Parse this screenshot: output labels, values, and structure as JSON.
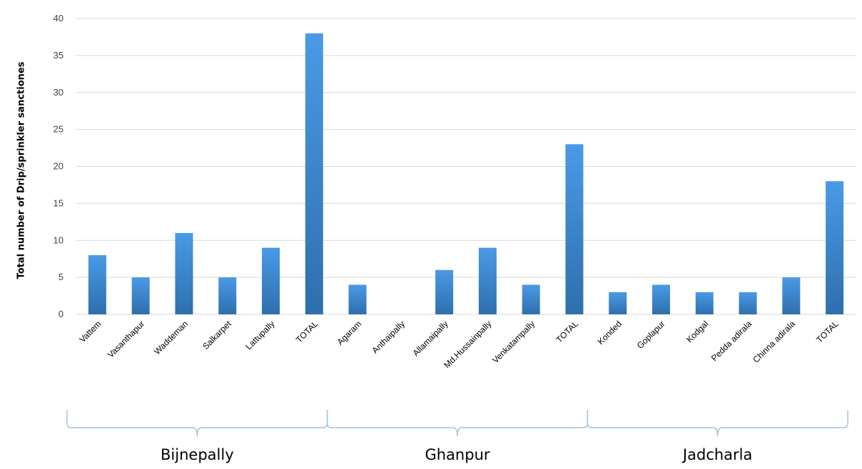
{
  "chart_data": {
    "type": "bar",
    "ylabel": "Total number of Drip/sprinkler sanctiones",
    "xlabel": "",
    "ylim": [
      0,
      40
    ],
    "yticks": [
      0,
      5,
      10,
      15,
      20,
      25,
      30,
      35,
      40
    ],
    "grid": true,
    "legend": "none",
    "colors": {
      "bar_top": "#4a9ae6",
      "bar_bottom": "#2e6fad",
      "grid": "#d9d9d9",
      "bracket": "#9ec3e6"
    },
    "categories": [
      "Vattem",
      "Vasanthapur",
      "Waddeman",
      "Salkarpet",
      "Lattupally",
      "TOTAL",
      "Agaram",
      "Anthaipally",
      "Allamaipally",
      "Md.Hussainpally",
      "Venkatampally",
      "TOTAL",
      "Konded",
      "Goplapur",
      "Kodgal",
      "Pedda adirala",
      "Chinna adirala",
      "TOTAL"
    ],
    "values": [
      8,
      5,
      11,
      5,
      9,
      38,
      4,
      0,
      6,
      9,
      4,
      23,
      3,
      4,
      3,
      3,
      5,
      18
    ],
    "groups": [
      {
        "name": "Bijnepally",
        "start": 0,
        "end": 5
      },
      {
        "name": "Ghanpur",
        "start": 6,
        "end": 11
      },
      {
        "name": "Jadcharla",
        "start": 12,
        "end": 17
      }
    ]
  }
}
